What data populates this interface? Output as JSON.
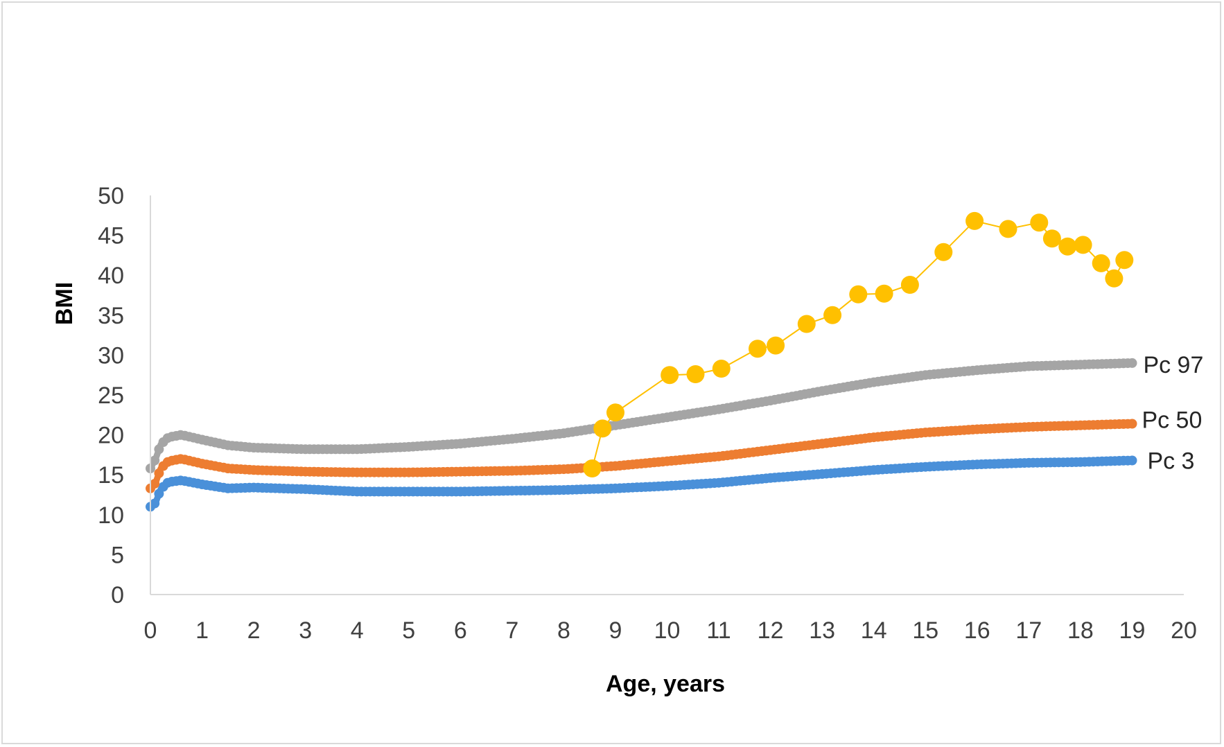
{
  "chart_data": {
    "type": "line",
    "title": "",
    "xlabel": "Age, years",
    "ylabel": "BMI",
    "xlim": [
      0,
      20
    ],
    "ylim": [
      0,
      50
    ],
    "x_ticks": [
      0,
      1,
      2,
      3,
      4,
      5,
      6,
      7,
      8,
      9,
      10,
      11,
      12,
      13,
      14,
      15,
      16,
      17,
      18,
      19,
      20
    ],
    "y_ticks": [
      0,
      5,
      10,
      15,
      20,
      25,
      30,
      35,
      40,
      45,
      50
    ],
    "grid": false,
    "legend": "none",
    "series": [
      {
        "name": "Pc 3",
        "color": "#4a90d9",
        "style": "dense-markers",
        "points": [
          [
            0,
            11.0
          ],
          [
            0.1,
            11.5
          ],
          [
            0.2,
            13.2
          ],
          [
            0.35,
            14.1
          ],
          [
            0.6,
            14.3
          ],
          [
            1,
            13.8
          ],
          [
            1.5,
            13.3
          ],
          [
            2,
            13.4
          ],
          [
            3,
            13.2
          ],
          [
            4,
            12.9
          ],
          [
            5,
            12.9
          ],
          [
            6,
            12.9
          ],
          [
            7,
            13.0
          ],
          [
            8,
            13.1
          ],
          [
            9,
            13.3
          ],
          [
            10,
            13.6
          ],
          [
            11,
            14.0
          ],
          [
            12,
            14.6
          ],
          [
            13,
            15.1
          ],
          [
            14,
            15.6
          ],
          [
            15,
            16.0
          ],
          [
            16,
            16.3
          ],
          [
            17,
            16.5
          ],
          [
            18,
            16.6
          ],
          [
            19,
            16.8
          ]
        ]
      },
      {
        "name": "Pc 50",
        "color": "#ed7d31",
        "style": "dense-markers",
        "points": [
          [
            0,
            13.3
          ],
          [
            0.1,
            14.0
          ],
          [
            0.2,
            15.8
          ],
          [
            0.35,
            16.7
          ],
          [
            0.6,
            17.0
          ],
          [
            1,
            16.4
          ],
          [
            1.5,
            15.8
          ],
          [
            2,
            15.6
          ],
          [
            3,
            15.4
          ],
          [
            4,
            15.3
          ],
          [
            5,
            15.3
          ],
          [
            6,
            15.4
          ],
          [
            7,
            15.5
          ],
          [
            8,
            15.7
          ],
          [
            9,
            16.1
          ],
          [
            10,
            16.7
          ],
          [
            11,
            17.3
          ],
          [
            12,
            18.1
          ],
          [
            13,
            18.9
          ],
          [
            14,
            19.7
          ],
          [
            15,
            20.3
          ],
          [
            16,
            20.7
          ],
          [
            17,
            21.0
          ],
          [
            18,
            21.2
          ],
          [
            19,
            21.4
          ]
        ]
      },
      {
        "name": "Pc 97",
        "color": "#a5a5a5",
        "style": "dense-markers",
        "points": [
          [
            0,
            15.8
          ],
          [
            0.1,
            17.0
          ],
          [
            0.2,
            18.8
          ],
          [
            0.35,
            19.7
          ],
          [
            0.6,
            20.0
          ],
          [
            1,
            19.4
          ],
          [
            1.5,
            18.7
          ],
          [
            2,
            18.4
          ],
          [
            3,
            18.2
          ],
          [
            4,
            18.2
          ],
          [
            5,
            18.5
          ],
          [
            6,
            18.9
          ],
          [
            7,
            19.5
          ],
          [
            8,
            20.2
          ],
          [
            9,
            21.2
          ],
          [
            10,
            22.2
          ],
          [
            11,
            23.2
          ],
          [
            12,
            24.3
          ],
          [
            13,
            25.5
          ],
          [
            14,
            26.6
          ],
          [
            15,
            27.5
          ],
          [
            16,
            28.1
          ],
          [
            17,
            28.6
          ],
          [
            18,
            28.8
          ],
          [
            19,
            29.0
          ]
        ]
      },
      {
        "name": "",
        "color": "#ffc000",
        "style": "line-markers",
        "points": [
          [
            8.55,
            15.8
          ],
          [
            8.75,
            20.8
          ],
          [
            9.0,
            22.8
          ],
          [
            10.05,
            27.5
          ],
          [
            10.55,
            27.6
          ],
          [
            11.05,
            28.3
          ],
          [
            11.75,
            30.8
          ],
          [
            12.1,
            31.2
          ],
          [
            12.7,
            33.9
          ],
          [
            13.2,
            35.0
          ],
          [
            13.7,
            37.6
          ],
          [
            14.2,
            37.7
          ],
          [
            14.7,
            38.8
          ],
          [
            15.35,
            42.9
          ],
          [
            15.95,
            46.8
          ],
          [
            16.6,
            45.8
          ],
          [
            17.2,
            46.6
          ],
          [
            17.45,
            44.6
          ],
          [
            17.75,
            43.6
          ],
          [
            18.05,
            43.8
          ],
          [
            18.4,
            41.5
          ],
          [
            18.65,
            39.6
          ],
          [
            18.85,
            41.9
          ]
        ]
      }
    ],
    "annotations": [
      {
        "text": "Pc 97",
        "series": "Pc 97"
      },
      {
        "text": "Pc 50",
        "series": "Pc 50"
      },
      {
        "text": "Pc 3",
        "series": "Pc 3"
      }
    ]
  }
}
